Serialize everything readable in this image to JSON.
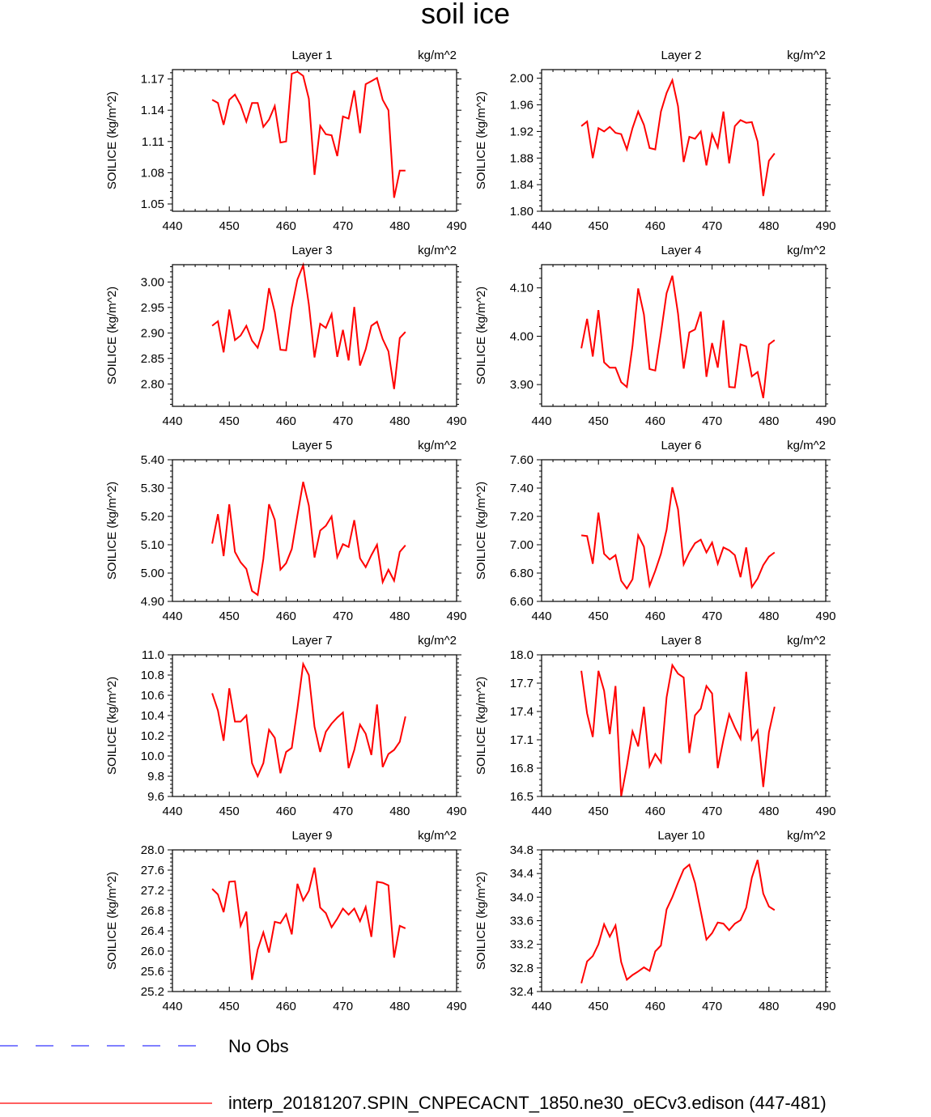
{
  "figure": {
    "title": "soil ice",
    "legend": [
      {
        "label": "No Obs",
        "color": "#0000ff",
        "style": "dashed"
      },
      {
        "label": "interp_20181207.SPIN_CNPECACNT_1850.ne30_oECv3.edison (447-481)",
        "color": "#ff0000",
        "style": "solid"
      }
    ]
  },
  "chart_data": [
    {
      "type": "line",
      "title": "Layer 1",
      "units": "kg/m^2",
      "ylabel": "SOILICE  (kg/m^2)",
      "xlim": [
        440,
        490
      ],
      "x_ticks": [
        "440",
        "450",
        "460",
        "470",
        "480",
        "490"
      ],
      "ylim": [
        1.043,
        1.179
      ],
      "y_ticks": [
        "1.05",
        "1.08",
        "1.11",
        "1.14",
        "1.17"
      ],
      "series": [
        {
          "color": "#ff0000",
          "x_start": 447,
          "values": [
            1.15,
            1.147,
            1.126,
            1.15,
            1.155,
            1.145,
            1.129,
            1.147,
            1.147,
            1.124,
            1.131,
            1.144,
            1.109,
            1.11,
            1.175,
            1.177,
            1.173,
            1.151,
            1.078,
            1.125,
            1.117,
            1.116,
            1.096,
            1.134,
            1.132,
            1.159,
            1.118,
            1.165,
            1.168,
            1.171,
            1.15,
            1.14,
            1.056,
            1.082,
            1.082
          ]
        }
      ]
    },
    {
      "type": "line",
      "title": "Layer 2",
      "units": "kg/m^2",
      "ylabel": "SOILICE  (kg/m^2)",
      "xlim": [
        440,
        490
      ],
      "x_ticks": [
        "440",
        "450",
        "460",
        "470",
        "480",
        "490"
      ],
      "ylim": [
        1.8,
        2.013
      ],
      "y_ticks": [
        "1.80",
        "1.84",
        "1.88",
        "1.92",
        "1.96",
        "2.00"
      ],
      "series": [
        {
          "color": "#ff0000",
          "x_start": 447,
          "values": [
            1.928,
            1.935,
            1.88,
            1.925,
            1.92,
            1.927,
            1.918,
            1.916,
            1.893,
            1.925,
            1.95,
            1.93,
            1.895,
            1.893,
            1.95,
            1.978,
            1.997,
            1.958,
            1.874,
            1.912,
            1.909,
            1.92,
            1.869,
            1.916,
            1.896,
            1.95,
            1.872,
            1.928,
            1.937,
            1.933,
            1.934,
            1.905,
            1.823,
            1.876,
            1.887
          ]
        }
      ]
    },
    {
      "type": "line",
      "title": "Layer 3",
      "units": "kg/m^2",
      "ylabel": "SOILICE  (kg/m^2)",
      "xlim": [
        440,
        490
      ],
      "x_ticks": [
        "440",
        "450",
        "460",
        "470",
        "480",
        "490"
      ],
      "ylim": [
        2.756,
        3.034
      ],
      "y_ticks": [
        "2.80",
        "2.85",
        "2.90",
        "2.95",
        "3.00"
      ],
      "series": [
        {
          "color": "#ff0000",
          "x_start": 447,
          "values": [
            2.914,
            2.923,
            2.862,
            2.946,
            2.886,
            2.895,
            2.914,
            2.885,
            2.871,
            2.908,
            2.988,
            2.941,
            2.867,
            2.866,
            2.95,
            3.005,
            3.033,
            2.956,
            2.852,
            2.918,
            2.91,
            2.937,
            2.853,
            2.906,
            2.846,
            2.951,
            2.836,
            2.868,
            2.914,
            2.922,
            2.888,
            2.864,
            2.79,
            2.89,
            2.902
          ]
        }
      ]
    },
    {
      "type": "line",
      "title": "Layer 4",
      "units": "kg/m^2",
      "ylabel": "SOILICE  (kg/m^2)",
      "xlim": [
        440,
        490
      ],
      "x_ticks": [
        "440",
        "450",
        "460",
        "470",
        "480",
        "490"
      ],
      "ylim": [
        3.855,
        4.148
      ],
      "y_ticks": [
        "3.90",
        "4.00",
        "4.10"
      ],
      "series": [
        {
          "color": "#ff0000",
          "x_start": 447,
          "values": [
            3.975,
            4.036,
            3.958,
            4.054,
            3.946,
            3.935,
            3.935,
            3.905,
            3.895,
            3.98,
            4.099,
            4.045,
            3.932,
            3.929,
            4.006,
            4.089,
            4.125,
            4.047,
            3.933,
            4.008,
            4.014,
            4.051,
            3.916,
            3.986,
            3.935,
            4.033,
            3.895,
            3.894,
            3.983,
            3.979,
            3.917,
            3.926,
            3.872,
            3.983,
            3.992
          ]
        }
      ]
    },
    {
      "type": "line",
      "title": "Layer 5",
      "units": "kg/m^2",
      "ylabel": "SOILICE  (kg/m^2)",
      "xlim": [
        440,
        490
      ],
      "x_ticks": [
        "440",
        "450",
        "460",
        "470",
        "480",
        "490"
      ],
      "ylim": [
        4.9,
        5.4
      ],
      "y_ticks": [
        "4.90",
        "5.00",
        "5.10",
        "5.20",
        "5.30",
        "5.40"
      ],
      "series": [
        {
          "color": "#ff0000",
          "x_start": 447,
          "values": [
            5.104,
            5.208,
            5.06,
            5.243,
            5.075,
            5.038,
            5.015,
            4.937,
            4.923,
            5.05,
            5.243,
            5.188,
            5.012,
            5.035,
            5.085,
            5.204,
            5.322,
            5.238,
            5.055,
            5.15,
            5.167,
            5.2,
            5.056,
            5.102,
            5.092,
            5.187,
            5.052,
            5.021,
            5.063,
            5.1,
            4.968,
            5.012,
            4.973,
            5.075,
            5.098
          ]
        }
      ]
    },
    {
      "type": "line",
      "title": "Layer 6",
      "units": "kg/m^2",
      "ylabel": "SOILICE  (kg/m^2)",
      "xlim": [
        440,
        490
      ],
      "x_ticks": [
        "440",
        "450",
        "460",
        "470",
        "480",
        "490"
      ],
      "ylim": [
        6.6,
        7.6
      ],
      "y_ticks": [
        "6.60",
        "6.80",
        "7.00",
        "7.20",
        "7.40",
        "7.60"
      ],
      "series": [
        {
          "color": "#ff0000",
          "x_start": 447,
          "values": [
            7.066,
            7.061,
            6.866,
            7.226,
            6.936,
            6.896,
            6.926,
            6.746,
            6.691,
            6.756,
            7.066,
            6.986,
            6.711,
            6.816,
            6.936,
            7.106,
            7.406,
            7.251,
            6.861,
            6.946,
            7.011,
            7.036,
            6.946,
            7.016,
            6.866,
            6.981,
            6.961,
            6.926,
            6.771,
            6.981,
            6.701,
            6.761,
            6.856,
            6.916,
            6.946
          ]
        }
      ]
    },
    {
      "type": "line",
      "title": "Layer 7",
      "units": "kg/m^2",
      "ylabel": "SOILICE  (kg/m^2)",
      "xlim": [
        440,
        490
      ],
      "x_ticks": [
        "440",
        "450",
        "460",
        "470",
        "480",
        "490"
      ],
      "ylim": [
        9.6,
        11.0
      ],
      "y_ticks": [
        "9.6",
        "9.8",
        "10.0",
        "10.2",
        "10.4",
        "10.6",
        "10.8",
        "11.0"
      ],
      "series": [
        {
          "color": "#ff0000",
          "x_start": 447,
          "values": [
            10.62,
            10.45,
            10.15,
            10.67,
            10.34,
            10.34,
            10.4,
            9.93,
            9.8,
            9.93,
            10.26,
            10.18,
            9.83,
            10.04,
            10.08,
            10.47,
            10.91,
            10.8,
            10.29,
            10.04,
            10.24,
            10.32,
            10.38,
            10.43,
            9.88,
            10.06,
            10.31,
            10.22,
            10.01,
            10.51,
            9.89,
            10.02,
            10.06,
            10.14,
            10.39
          ]
        }
      ]
    },
    {
      "type": "line",
      "title": "Layer 8",
      "units": "kg/m^2",
      "ylabel": "SOILICE  (kg/m^2)",
      "xlim": [
        440,
        490
      ],
      "x_ticks": [
        "440",
        "450",
        "460",
        "470",
        "480",
        "490"
      ],
      "ylim": [
        16.5,
        18.0
      ],
      "y_ticks": [
        "16.5",
        "16.8",
        "17.1",
        "17.4",
        "17.7",
        "18.0"
      ],
      "series": [
        {
          "color": "#ff0000",
          "x_start": 447,
          "values": [
            17.83,
            17.38,
            17.13,
            17.83,
            17.62,
            17.16,
            17.67,
            16.5,
            16.82,
            17.19,
            17.03,
            17.45,
            16.82,
            16.95,
            16.86,
            17.55,
            17.89,
            17.8,
            17.76,
            16.96,
            17.36,
            17.43,
            17.67,
            17.59,
            16.8,
            17.1,
            17.37,
            17.23,
            17.11,
            17.82,
            17.1,
            17.2,
            16.6,
            17.18,
            17.45
          ]
        }
      ]
    },
    {
      "type": "line",
      "title": "Layer 9",
      "units": "kg/m^2",
      "ylabel": "SOILICE  (kg/m^2)",
      "xlim": [
        440,
        490
      ],
      "x_ticks": [
        "440",
        "450",
        "460",
        "470",
        "480",
        "490"
      ],
      "ylim": [
        25.2,
        28.0
      ],
      "y_ticks": [
        "25.2",
        "25.6",
        "26.0",
        "26.4",
        "26.8",
        "27.2",
        "27.6",
        "28.0"
      ],
      "series": [
        {
          "color": "#ff0000",
          "x_start": 447,
          "values": [
            27.23,
            27.12,
            26.77,
            27.37,
            27.38,
            26.5,
            26.78,
            25.43,
            26.03,
            26.37,
            25.97,
            26.58,
            26.55,
            26.73,
            26.33,
            27.33,
            27.0,
            27.19,
            27.65,
            26.86,
            26.75,
            26.47,
            26.64,
            26.84,
            26.72,
            26.84,
            26.59,
            26.87,
            26.28,
            27.37,
            27.35,
            27.3,
            25.87,
            26.5,
            26.45
          ]
        }
      ]
    },
    {
      "type": "line",
      "title": "Layer 10",
      "units": "kg/m^2",
      "ylabel": "SOILICE  (kg/m^2)",
      "xlim": [
        440,
        490
      ],
      "x_ticks": [
        "440",
        "450",
        "460",
        "470",
        "480",
        "490"
      ],
      "ylim": [
        32.4,
        34.8
      ],
      "y_ticks": [
        "32.4",
        "32.8",
        "33.2",
        "33.6",
        "34.0",
        "34.4",
        "34.8"
      ],
      "series": [
        {
          "color": "#ff0000",
          "x_start": 447,
          "values": [
            32.54,
            32.91,
            33.0,
            33.2,
            33.54,
            33.33,
            33.52,
            32.9,
            32.6,
            32.68,
            32.74,
            32.81,
            32.75,
            33.08,
            33.18,
            33.79,
            34.0,
            34.24,
            34.47,
            34.55,
            34.24,
            33.76,
            33.28,
            33.39,
            33.57,
            33.55,
            33.44,
            33.55,
            33.61,
            33.82,
            34.33,
            34.63,
            34.06,
            33.84,
            33.78
          ]
        }
      ]
    }
  ]
}
